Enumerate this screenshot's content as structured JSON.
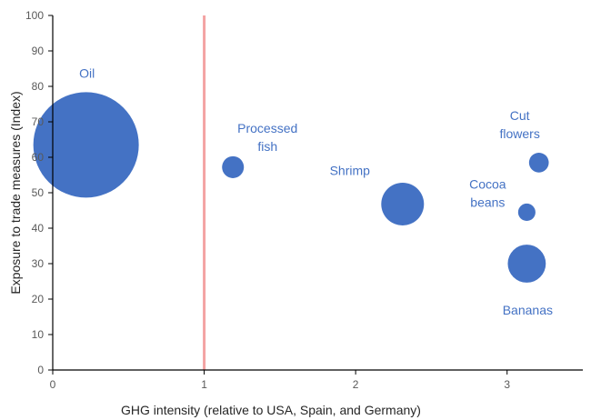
{
  "chart_data": {
    "type": "bubble",
    "xlabel": "GHG intensity (relative to USA, Spain, and Germany)",
    "ylabel": "Exposure to trade measures (Index)",
    "xlim": [
      0,
      3.5
    ],
    "ylim": [
      0,
      100
    ],
    "x_ticks": [
      "0",
      "1",
      "2",
      "3"
    ],
    "y_ticks": [
      "0",
      "10",
      "20",
      "30",
      "40",
      "50",
      "60",
      "70",
      "80",
      "90",
      "100"
    ],
    "reference_line": {
      "x": 1,
      "color": "#F4A3A3"
    },
    "bubble_color": "#4472C4",
    "bubbles": [
      {
        "label_lines": [
          "Oil"
        ],
        "x": 0.22,
        "y": 63.5,
        "size": 100
      },
      {
        "label_lines": [
          "Processed",
          "fish"
        ],
        "x": 1.19,
        "y": 57.2,
        "size": 4.3
      },
      {
        "label_lines": [
          "Shrimp"
        ],
        "x": 2.31,
        "y": 46.8,
        "size": 16.4
      },
      {
        "label_lines": [
          "Cut",
          "flowers"
        ],
        "x": 3.21,
        "y": 58.5,
        "size": 3.5
      },
      {
        "label_lines": [
          "Cocoa",
          "beans"
        ],
        "x": 3.13,
        "y": 44.5,
        "size": 2.7
      },
      {
        "label_lines": [
          "Bananas"
        ],
        "x": 3.13,
        "y": 30.0,
        "size": 13.0
      }
    ]
  }
}
